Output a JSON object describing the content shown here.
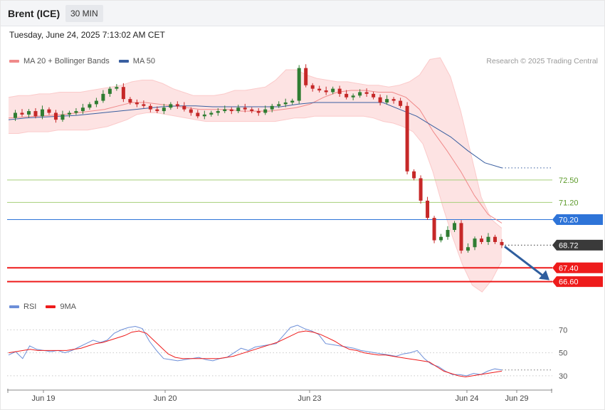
{
  "header": {
    "title": "Brent (ICE)",
    "timeframe": "30 MIN",
    "datetime": "Tuesday, June 24, 2025 7:13:02 AM CET"
  },
  "legend": {
    "ma_bb_label": "MA 20 + Bollinger Bands",
    "ma50_label": "MA 50",
    "credit": "Research © 2025 Trading Central"
  },
  "rsi_legend": {
    "rsi_label": "RSI",
    "ma9_label": "9MA"
  },
  "colors": {
    "bullish": "#2f7d32",
    "bearish": "#c62828",
    "bands": "#fde3e3",
    "ma20": "#f08a8a",
    "ma50": "#3a5fa0",
    "support": "#ee1b1b",
    "pivot": "#2e74d8",
    "resistance": "#a6cf7a",
    "current": "#3a3a3a",
    "arrow": "#2f5e9e",
    "rsi": "#6d8fd8"
  },
  "chart_data": [
    {
      "type": "candlestick",
      "y_range": [
        65.8,
        78.9
      ],
      "x_ticks": [
        "Jun 19",
        "Jun 20",
        "Jun 23",
        "Jun 24",
        "Jun 29"
      ],
      "levels": [
        {
          "label": "72.50",
          "value": 72.5,
          "kind": "resistance"
        },
        {
          "label": "71.20",
          "value": 71.2,
          "kind": "resistance"
        },
        {
          "label": "70.20",
          "value": 70.2,
          "kind": "pivot"
        },
        {
          "label": "68.72",
          "value": 68.72,
          "kind": "current"
        },
        {
          "label": "67.40",
          "value": 67.4,
          "kind": "support"
        },
        {
          "label": "66.60",
          "value": 66.6,
          "kind": "support"
        }
      ],
      "projection": {
        "from": 68.72,
        "to": 66.6,
        "direction": "down"
      },
      "price": [
        76.1,
        76.4,
        76.3,
        76.5,
        76.2,
        76.6,
        76.4,
        76.0,
        76.3,
        76.4,
        76.5,
        76.7,
        76.9,
        77.1,
        77.5,
        77.8,
        77.9,
        77.2,
        77.0,
        76.9,
        76.8,
        76.6,
        76.5,
        76.7,
        76.9,
        76.8,
        76.6,
        76.4,
        76.2,
        76.3,
        76.4,
        76.5,
        76.6,
        76.5,
        76.7,
        76.6,
        76.5,
        76.4,
        76.6,
        76.8,
        76.9,
        77.0,
        77.1,
        79.0,
        78.0,
        77.8,
        77.7,
        77.6,
        77.8,
        77.5,
        77.3,
        77.4,
        77.6,
        77.5,
        77.3,
        77.0,
        77.2,
        77.1,
        76.8,
        73.0,
        72.6,
        71.3,
        70.3,
        69.0,
        69.2,
        69.6,
        70.0,
        68.4,
        68.6,
        69.1,
        68.9,
        69.2,
        68.9,
        68.72
      ],
      "bb_upper": [
        77.3,
        77.4,
        77.4,
        77.5,
        77.5,
        77.6,
        77.6,
        77.6,
        77.7,
        77.8,
        77.9,
        78.0,
        78.2,
        78.3,
        78.3,
        78.1,
        77.8,
        77.6,
        77.4,
        77.4,
        77.4,
        77.5,
        77.7,
        77.7,
        77.8,
        77.9,
        78.3,
        78.9,
        78.9,
        78.6,
        78.4,
        78.3,
        78.2,
        78.2,
        78.1,
        78.0,
        78.0,
        77.9,
        78.0,
        78.2,
        78.6,
        79.5,
        79.6,
        78.5,
        76.5,
        74.0,
        71.5,
        70.2,
        69.7
      ],
      "bb_lower": [
        75.2,
        75.2,
        75.3,
        75.3,
        75.3,
        75.4,
        75.4,
        75.4,
        75.4,
        75.5,
        75.6,
        75.8,
        76.0,
        76.3,
        76.4,
        76.4,
        76.3,
        76.2,
        76.1,
        76.0,
        75.9,
        75.9,
        75.9,
        75.9,
        75.9,
        75.9,
        75.9,
        75.9,
        76.0,
        76.1,
        76.1,
        76.2,
        76.2,
        76.2,
        76.2,
        76.2,
        76.2,
        76.1,
        75.9,
        75.8,
        75.6,
        75.3,
        74.6,
        73.0,
        71.0,
        69.2,
        67.6,
        66.4,
        66.0,
        66.7,
        67.8
      ],
      "ma20": [
        76.1,
        76.15,
        76.2,
        76.25,
        76.3,
        76.4,
        76.5,
        76.6,
        76.8,
        77.0,
        77.0,
        76.9,
        76.8,
        76.7,
        76.6,
        76.6,
        76.6,
        76.5,
        76.5,
        76.5,
        76.6,
        76.7,
        76.9,
        77.3,
        77.6,
        77.7,
        77.7,
        77.6,
        77.6,
        77.3,
        76.6,
        75.3,
        74.2,
        73.0,
        71.6,
        70.5,
        70.0
      ],
      "ma50": [
        76.0,
        76.1,
        76.15,
        76.2,
        76.25,
        76.35,
        76.45,
        76.55,
        76.65,
        76.75,
        76.8,
        76.8,
        76.75,
        76.75,
        76.75,
        76.75,
        76.75,
        76.9,
        77.0,
        77.0,
        77.0,
        77.0,
        77.0,
        76.6,
        76.2,
        75.6,
        75.0,
        74.2,
        73.5,
        73.2
      ]
    },
    {
      "type": "line",
      "name": "RSI",
      "y_range": [
        20,
        82
      ],
      "y_ticks": [
        70,
        50,
        30
      ],
      "rsi": [
        48,
        51,
        45,
        56,
        53,
        52,
        51,
        52,
        50,
        52,
        55,
        58,
        61,
        59,
        61,
        67,
        70,
        72,
        73,
        71,
        60,
        52,
        45,
        44,
        43,
        44,
        45,
        46,
        44,
        43,
        45,
        46,
        50,
        54,
        52,
        55,
        56,
        57,
        58,
        65,
        72,
        74,
        71,
        69,
        66,
        58,
        57,
        56,
        55,
        54,
        52,
        51,
        50,
        49,
        48,
        47,
        49,
        50,
        52,
        45,
        40,
        38,
        34,
        31,
        31,
        30,
        32,
        31,
        34,
        36,
        35
      ],
      "rsi_ma": [
        50,
        51,
        52,
        53,
        52,
        52,
        52,
        52,
        52,
        53,
        54,
        56,
        58,
        59,
        61,
        63,
        65,
        68,
        69,
        67,
        61,
        55,
        49,
        46,
        45,
        45,
        45,
        45,
        45,
        45,
        46,
        47,
        49,
        51,
        53,
        55,
        57,
        59,
        62,
        65,
        68,
        69,
        68,
        66,
        63,
        60,
        56,
        53,
        52,
        50,
        49,
        48,
        48,
        47,
        46,
        45,
        44,
        43,
        42,
        38,
        34,
        32,
        30,
        29,
        30,
        31,
        32,
        33,
        34
      ]
    }
  ]
}
